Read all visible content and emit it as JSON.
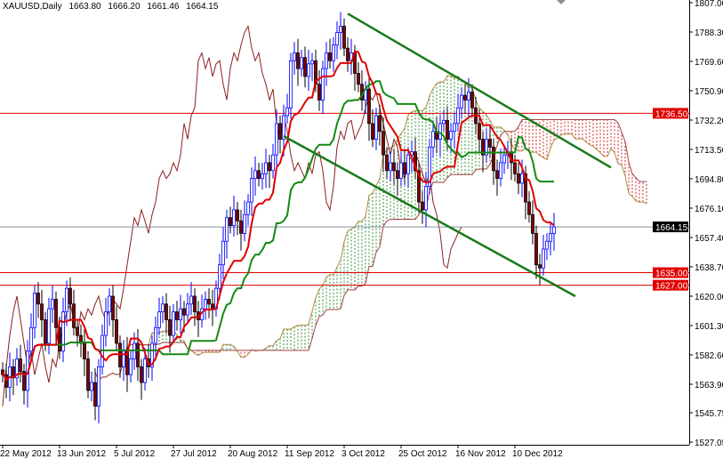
{
  "header": {
    "symbol": "XAUUSD,Daily",
    "open": "1663.80",
    "high": "1666.20",
    "low": "1661.46",
    "close": "1664.15"
  },
  "chart_data": {
    "type": "candlestick",
    "indicators": [
      "Ichimoku Kinko Hyo"
    ],
    "ylim": [
      1527.05,
      1807.0
    ],
    "y_ticks": [
      "1807.00",
      "1788.30",
      "1769.60",
      "1750.90",
      "1732.20",
      "1713.50",
      "1694.80",
      "1676.10",
      "1657.40",
      "1638.70",
      "1620.00",
      "1601.30",
      "1582.60",
      "1563.90",
      "1545.75",
      "1527.05"
    ],
    "x_ticks": [
      {
        "label": "22 May 2012",
        "bar": 0
      },
      {
        "label": "13 Jun 2012",
        "bar": 16
      },
      {
        "label": "5 Jul 2012",
        "bar": 32
      },
      {
        "label": "27 Jul 2012",
        "bar": 48
      },
      {
        "label": "20 Aug 2012",
        "bar": 64
      },
      {
        "label": "11 Sep 2012",
        "bar": 80
      },
      {
        "label": "3 Oct 2012",
        "bar": 96
      },
      {
        "label": "25 Oct 2012",
        "bar": 112
      },
      {
        "label": "16 Nov 2012",
        "bar": 128
      },
      {
        "label": "10 Dec 2012",
        "bar": 144
      }
    ],
    "closes": [
      1570,
      1562,
      1575,
      1568,
      1580,
      1572,
      1560,
      1585,
      1600,
      1622,
      1615,
      1605,
      1590,
      1612,
      1618,
      1600,
      1585,
      1610,
      1625,
      1615,
      1600,
      1595,
      1590,
      1580,
      1560,
      1565,
      1550,
      1575,
      1595,
      1610,
      1620,
      1605,
      1590,
      1575,
      1585,
      1570,
      1580,
      1590,
      1575,
      1565,
      1580,
      1575,
      1590,
      1600,
      1610,
      1615,
      1605,
      1595,
      1610,
      1605,
      1612,
      1608,
      1615,
      1620,
      1610,
      1605,
      1612,
      1618,
      1615,
      1612,
      1625,
      1640,
      1655,
      1670,
      1665,
      1675,
      1668,
      1660,
      1672,
      1680,
      1695,
      1700,
      1695,
      1698,
      1705,
      1700,
      1710,
      1730,
      1720,
      1735,
      1740,
      1770,
      1775,
      1765,
      1772,
      1760,
      1768,
      1770,
      1755,
      1745,
      1765,
      1775,
      1770,
      1780,
      1788,
      1792,
      1778,
      1770,
      1775,
      1762,
      1755,
      1745,
      1752,
      1730,
      1720,
      1735,
      1725,
      1710,
      1700,
      1705,
      1700,
      1695,
      1705,
      1698,
      1710,
      1712,
      1700,
      1680,
      1675,
      1690,
      1715,
      1725,
      1720,
      1730,
      1732,
      1720,
      1725,
      1730,
      1740,
      1748,
      1745,
      1750,
      1740,
      1730,
      1720,
      1710,
      1720,
      1715,
      1700,
      1695,
      1705,
      1710,
      1712,
      1705,
      1698,
      1692,
      1698,
      1680,
      1672,
      1660,
      1640,
      1638,
      1650,
      1655,
      1660,
      1664.15
    ],
    "horizontal_lines": [
      {
        "price": "1736.50",
        "color": "#e00000"
      },
      {
        "price": "1635.00",
        "color": "#e00000"
      },
      {
        "price": "1627.00",
        "color": "#e00000"
      }
    ],
    "current_price": "1664.15",
    "trend_lines": [
      {
        "from": {
          "bar": 97,
          "price": 1800
        },
        "to": {
          "bar": 171,
          "price": 1702
        },
        "color": "#1a7a1a"
      },
      {
        "from": {
          "bar": 79,
          "price": 1722
        },
        "to": {
          "bar": 161,
          "price": 1620
        },
        "color": "#1a7a1a"
      }
    ],
    "colors": {
      "bull": "#0000ff",
      "bear_body": "#800000",
      "tenkan": "#e00000",
      "kijun": "#138a13",
      "chikou": "#8b2020",
      "cloud_up": "#2e8b2e",
      "cloud_down": "#d02020"
    }
  }
}
